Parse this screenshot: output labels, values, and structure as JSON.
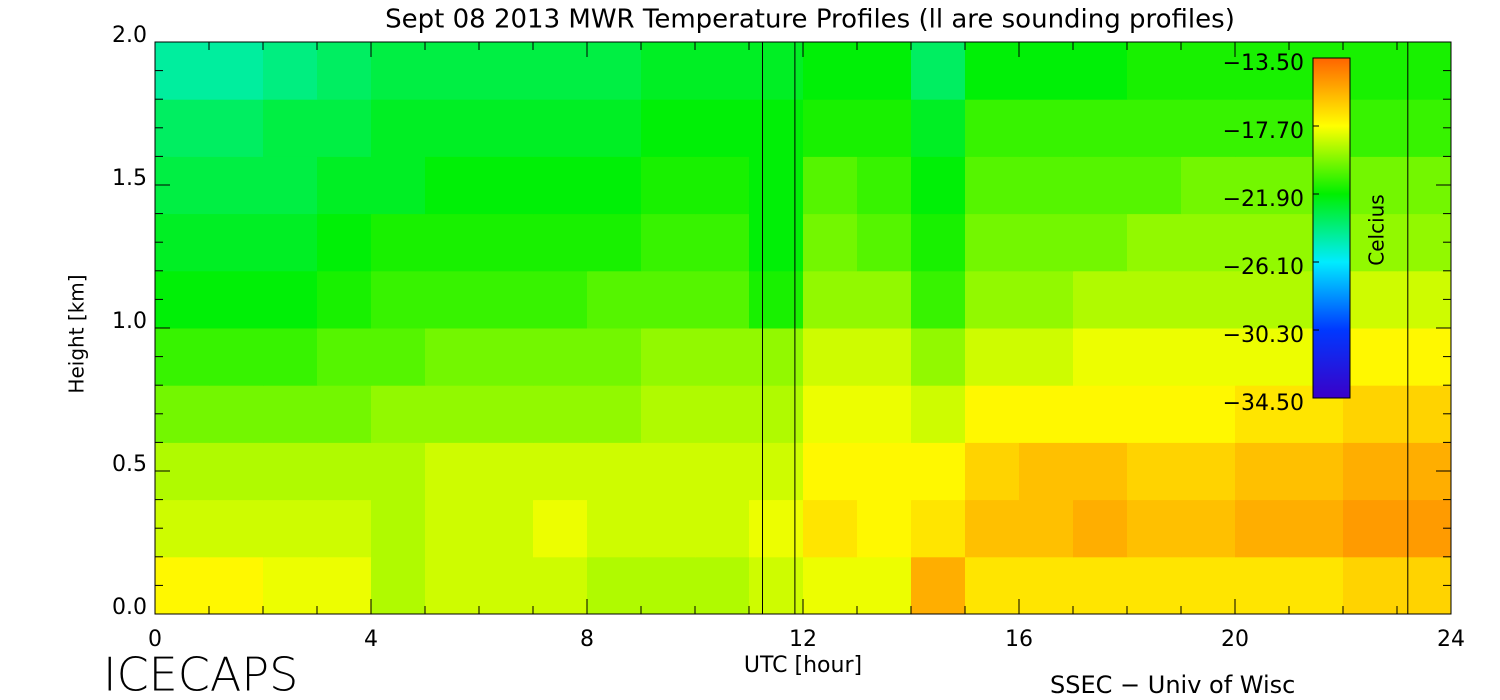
{
  "chart_data": {
    "type": "heatmap",
    "title": "Sept 08 2013 MWR Temperature Profiles (ll are sounding profiles)",
    "x_label": "UTC [hour]",
    "y_label": "Height [km]",
    "colorbar_label": "Celcius",
    "footer_left": "ICECAPS",
    "footer_right": "SSEC − Univ of Wisc",
    "xlim": [
      0,
      24
    ],
    "ylim": [
      0,
      2
    ],
    "xticks": [
      0,
      4,
      8,
      12,
      16,
      20,
      24
    ],
    "yticks": [
      {
        "value": 0,
        "label": "0.0"
      },
      0.5,
      {
        "value": 1,
        "label": "1.0"
      },
      1.5,
      {
        "value": 2,
        "label": "2.0"
      }
    ],
    "xminor": 4,
    "yminor": 5,
    "clim": [
      -34.5,
      -13.5
    ],
    "cticks": [
      {
        "value": -13.5,
        "label": "−13.50"
      },
      {
        "value": -17.7,
        "label": "−17.70"
      },
      {
        "value": -21.9,
        "label": "−21.90"
      },
      {
        "value": -26.1,
        "label": "−26.10"
      },
      {
        "value": -30.3,
        "label": "−30.30"
      },
      {
        "value": -34.5,
        "label": "−34.50"
      }
    ],
    "colorscale": [
      "#3a00c8",
      "#0038ff",
      "#00ecff",
      "#00f000",
      "#ffff00",
      "#ff6400"
    ],
    "sounding_times": [
      11.25,
      11.85,
      23.2
    ],
    "x": [
      0.5,
      1.5,
      2.5,
      3.5,
      4.5,
      5.5,
      6.5,
      7.5,
      8.5,
      9.5,
      10.5,
      11.5,
      12.5,
      13.5,
      14.5,
      15.5,
      16.5,
      17.5,
      18.5,
      19.5,
      20.5,
      21.5,
      22.5,
      23.5
    ],
    "y": [
      0.1,
      0.3,
      0.5,
      0.7,
      0.9,
      1.1,
      1.3,
      1.5,
      1.7,
      1.9
    ],
    "values": [
      [
        -17.5,
        -17.5,
        -18,
        -18,
        -19,
        -18.5,
        -18.5,
        -18.5,
        -19,
        -19,
        -19,
        -18.5,
        -18,
        -18,
        -15.5,
        -17,
        -17,
        -17,
        -17,
        -17,
        -17,
        -17,
        -16.5,
        -16.5
      ],
      [
        -18.5,
        -18.5,
        -18.5,
        -18.5,
        -19,
        -18.5,
        -18.5,
        -18,
        -18.5,
        -18.5,
        -18.5,
        -18,
        -17,
        -17.5,
        -17,
        -16,
        -16,
        -15.5,
        -16,
        -16,
        -15.5,
        -15.5,
        -15,
        -15
      ],
      [
        -19,
        -19,
        -19,
        -19,
        -19,
        -18.5,
        -18.5,
        -18.5,
        -18.5,
        -18.5,
        -18.5,
        -18.5,
        -17.5,
        -17.5,
        -17.5,
        -16.5,
        -16,
        -16,
        -16.5,
        -16.5,
        -16,
        -16,
        -15.5,
        -15.5
      ],
      [
        -20,
        -20,
        -20,
        -20,
        -19.5,
        -19.5,
        -19.5,
        -19.5,
        -19.5,
        -19,
        -19,
        -19,
        -18,
        -18,
        -18.5,
        -17.5,
        -17.5,
        -17.5,
        -17.5,
        -17.5,
        -17,
        -17,
        -16.5,
        -16.5
      ],
      [
        -21,
        -21,
        -21,
        -20.5,
        -20.5,
        -20,
        -20,
        -20,
        -20,
        -19.5,
        -19.5,
        -19.5,
        -18.5,
        -18.5,
        -19.5,
        -18.5,
        -18.5,
        -18,
        -18,
        -18,
        -18,
        -18,
        -17.5,
        -17.5
      ],
      [
        -22,
        -22,
        -22,
        -21.5,
        -21,
        -21,
        -21,
        -21,
        -20.5,
        -20.5,
        -20.5,
        -21.5,
        -19.5,
        -19.5,
        -21,
        -19.5,
        -19.5,
        -19,
        -19,
        -19,
        -19,
        -19,
        -18.5,
        -18.5
      ],
      [
        -22.5,
        -22.5,
        -22.5,
        -22,
        -21.5,
        -21.5,
        -21.5,
        -21.5,
        -21.5,
        -21,
        -21,
        -22,
        -20,
        -20.5,
        -21.5,
        -20,
        -20,
        -20,
        -19.5,
        -19.5,
        -19.5,
        -19.5,
        -19.5,
        -19.5
      ],
      [
        -23,
        -23,
        -23,
        -22.5,
        -22.5,
        -22,
        -22,
        -22,
        -22,
        -21.5,
        -21.5,
        -22,
        -20.5,
        -21,
        -22,
        -20.5,
        -20.5,
        -20.5,
        -20.5,
        -20,
        -20,
        -20,
        -20,
        -20
      ],
      [
        -23.5,
        -23.5,
        -23,
        -23,
        -22.5,
        -22.5,
        -22.5,
        -22.5,
        -22.5,
        -22,
        -22,
        -22,
        -21.5,
        -21.5,
        -22.5,
        -21,
        -21,
        -21,
        -21,
        -21,
        -21,
        -21,
        -21,
        -21
      ],
      [
        -24.5,
        -24.5,
        -24,
        -23.5,
        -23,
        -23,
        -23,
        -23,
        -23,
        -22.5,
        -22.5,
        -22.5,
        -22,
        -22,
        -23.5,
        -22,
        -22,
        -22,
        -21.5,
        -21.5,
        -21.5,
        -21.5,
        -21.5,
        -21.5
      ]
    ]
  }
}
